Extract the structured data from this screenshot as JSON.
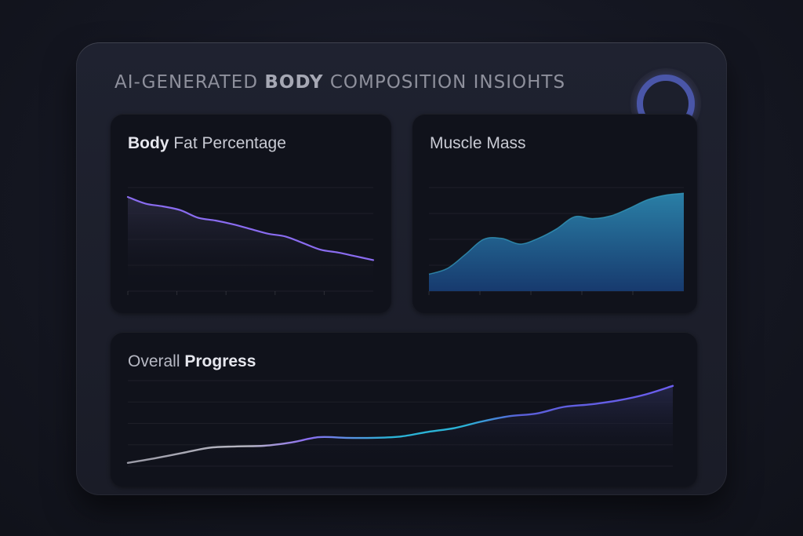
{
  "title": {
    "light": "AI-GENERATED ",
    "bold": "BODY",
    "rest": " COMPOSITION INSIOHTS"
  },
  "cards": {
    "bodyfat": {
      "title_bold": "Body",
      "title_rest": " Fat Percentage"
    },
    "muscle": {
      "title": "Muscle Mass"
    },
    "progress": {
      "title_light": "Overall ",
      "title_bold": "Progress"
    }
  },
  "colors": {
    "accent_purple": "#8a6cf0",
    "accent_blue": "#4a56a8",
    "accent_teal": "#2bb3d6",
    "muscle_fill_top": "#2a7fa6",
    "muscle_fill_bottom": "#173a6e"
  },
  "chart_data": [
    {
      "type": "line",
      "id": "bodyfat",
      "x": [
        0,
        1,
        2,
        3,
        4,
        5,
        6,
        7,
        8,
        9,
        10,
        11,
        12,
        13,
        14
      ],
      "series": [
        {
          "values": [
            10.0,
            9.3,
            9.0,
            8.6,
            7.8,
            7.5,
            7.1,
            6.6,
            6.1,
            5.8,
            5.1,
            4.4,
            4.1,
            3.7,
            3.3
          ]
        }
      ],
      "ylim": [
        0,
        11
      ],
      "grid": true
    },
    {
      "type": "area",
      "id": "muscle",
      "x": [
        0,
        1,
        2,
        3,
        4,
        5,
        6,
        7,
        8,
        9,
        10,
        11,
        12,
        13,
        14
      ],
      "series": [
        {
          "values": [
            1.8,
            2.4,
            3.9,
            5.5,
            5.6,
            5.0,
            5.6,
            6.6,
            7.9,
            7.7,
            8.0,
            8.8,
            9.7,
            10.2,
            10.4
          ]
        }
      ],
      "ylim": [
        0,
        11
      ],
      "grid": true
    },
    {
      "type": "line",
      "id": "progress",
      "x": [
        0,
        1,
        2,
        3,
        4,
        5,
        6,
        7,
        8,
        9,
        10,
        11,
        12,
        13,
        14,
        15,
        16,
        17,
        18,
        19,
        20
      ],
      "series": [
        {
          "values": [
            0.5,
            1.2,
            2.0,
            2.8,
            3.0,
            3.1,
            3.6,
            4.4,
            4.3,
            4.3,
            4.5,
            5.2,
            5.8,
            6.8,
            7.6,
            8.0,
            9.0,
            9.4,
            10.0,
            10.9,
            12.2
          ]
        }
      ],
      "ylim": [
        0,
        13
      ],
      "grid": true
    }
  ]
}
